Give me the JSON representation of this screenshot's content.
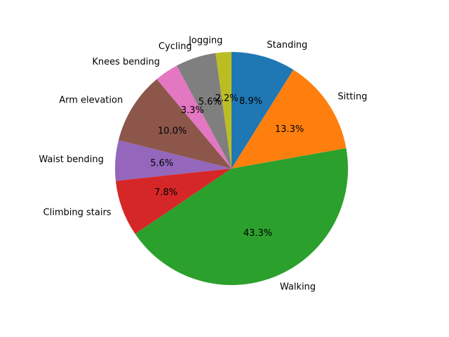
{
  "chart_data": {
    "type": "pie",
    "start_angle_deg": 90,
    "direction": "counterclockwise",
    "title": "",
    "labels": [
      "Jogging",
      "Cycling",
      "Knees bending",
      "Arm elevation",
      "Waist bending",
      "Climbing stairs",
      "Walking",
      "Sitting",
      "Standing"
    ],
    "values": [
      2.2,
      5.6,
      3.3,
      10.0,
      5.6,
      7.8,
      43.3,
      13.3,
      8.9
    ],
    "pct_labels": [
      "2.2%",
      "5.6%",
      "3.3%",
      "10.0%",
      "5.6%",
      "7.8%",
      "43.3%",
      "13.3%",
      "8.9%"
    ],
    "colors": [
      "#bcbd22",
      "#7f7f7f",
      "#e377c2",
      "#8c564b",
      "#9467bd",
      "#d62728",
      "#2ca02c",
      "#ff7f0e",
      "#1f77b4"
    ]
  }
}
